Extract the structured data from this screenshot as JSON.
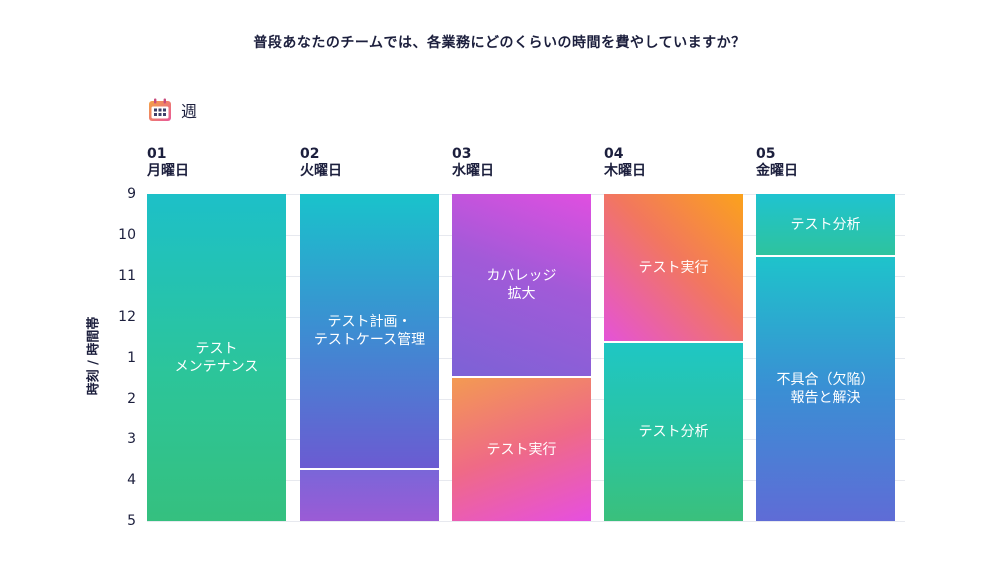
{
  "title": "普段あなたのチームでは、各業務にどのくらいの時間を費やしていますか？",
  "view": {
    "icon": "calendar-icon",
    "label": "週"
  },
  "y_axis": {
    "label": "時刻 / 時間帯",
    "ticks": [
      "9",
      "10",
      "11",
      "12",
      "1",
      "2",
      "3",
      "4",
      "5"
    ]
  },
  "days": [
    {
      "num": "01",
      "name": "月曜日"
    },
    {
      "num": "02",
      "name": "火曜日"
    },
    {
      "num": "03",
      "name": "水曜日"
    },
    {
      "num": "04",
      "name": "木曜日"
    },
    {
      "num": "05",
      "name": "金曜日"
    }
  ],
  "blocks": [
    {
      "day": 0,
      "start": 0,
      "end": 8,
      "label": "テスト\nメンテナンス",
      "gradient": "teal-green"
    },
    {
      "day": 1,
      "start": 0,
      "end": 6.7,
      "label": "テスト計画・\nテストケース管理",
      "gradient": "teal-blue"
    },
    {
      "day": 1,
      "start": 6.7,
      "end": 8,
      "label": "",
      "gradient": "purple"
    },
    {
      "day": 2,
      "start": 0,
      "end": 4.45,
      "label": "カバレッジ\n拡大",
      "gradient": "magenta-purp"
    },
    {
      "day": 2,
      "start": 4.45,
      "end": 8,
      "label": "テスト実行",
      "gradient": "coral-pink"
    },
    {
      "day": 3,
      "start": 0,
      "end": 3.6,
      "label": "テスト実行",
      "gradient": "orange-pink"
    },
    {
      "day": 3,
      "start": 3.6,
      "end": 8,
      "label": "テスト分析",
      "gradient": "teal-green2"
    },
    {
      "day": 4,
      "start": 0,
      "end": 1.5,
      "label": "テスト分析",
      "gradient": "teal-small"
    },
    {
      "day": 4,
      "start": 1.5,
      "end": 8,
      "label": "不具合（欠陥）\n報告と解決",
      "gradient": "teal-indigo"
    }
  ],
  "colors": {
    "text": "#1c1f3d",
    "grid": "#e7e9ef"
  }
}
